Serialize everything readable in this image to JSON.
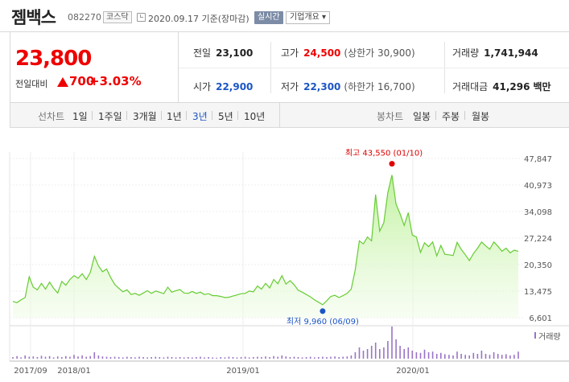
{
  "header": {
    "stock_name": "젬백스",
    "stock_code": "082270",
    "market": "코스닥",
    "date_text": "2020.09.17 기준(장마감)",
    "realtime_label": "실시간",
    "company_label": "기업개요 ▾"
  },
  "quote": {
    "price": "23,800",
    "change_label": "전일대비",
    "change_value": "700",
    "change_pct": "+3.03%",
    "stats": {
      "prev_close_label": "전일",
      "prev_close": "23,100",
      "high_label": "고가",
      "high": "24,500",
      "upper_limit": "(상한가 30,900)",
      "volume_label": "거래량",
      "volume": "1,741,944",
      "open_label": "시가",
      "open": "22,900",
      "low_label": "저가",
      "low": "22,300",
      "lower_limit": "(하한가 16,700)",
      "amount_label": "거래대금",
      "amount": "41,296",
      "amount_unit": "백만"
    }
  },
  "tabs": {
    "line_label": "선차트",
    "line_tabs": [
      "1일",
      "1주일",
      "3개월",
      "1년",
      "3년",
      "5년",
      "10년"
    ],
    "line_active": "3년",
    "candle_label": "봉차트",
    "candle_tabs": [
      "일봉",
      "주봉",
      "월봉"
    ]
  },
  "colors": {
    "up": "#e00000",
    "down": "#1c55c4",
    "line": "#66cc33",
    "volume": "#9a74c6"
  },
  "chart_data": {
    "type": "area",
    "y_ticks": [
      "47,847",
      "40,973",
      "34,098",
      "27,224",
      "20,350",
      "13,475",
      "6,601"
    ],
    "ylim": [
      6601,
      47847
    ],
    "x_ticks": [
      "2017/09",
      "2018/01",
      "2019/01",
      "2020/01"
    ],
    "max_annotation": "최고 43,550 (01/10)",
    "min_annotation": "최저 9,960 (06/09)",
    "volume_legend": "거래량",
    "series": [
      {
        "values": [
          10800,
          10500,
          11200,
          11800,
          17200,
          14500,
          13800,
          15500,
          14000,
          15800,
          14200,
          13000,
          16000,
          15000,
          16500,
          17500,
          16800,
          18000,
          16500,
          18300,
          22500,
          20000,
          18500,
          19200,
          17000,
          15200,
          14200,
          13300,
          13800,
          12600,
          12900,
          12400,
          13000,
          13600,
          12900,
          13500,
          13200,
          12800,
          14500,
          13200,
          13600,
          13900,
          13000,
          12900,
          13400,
          12900,
          13200,
          12600,
          12800,
          12300,
          12300,
          12100,
          11800,
          11900,
          12200,
          12500,
          12800,
          12900,
          13500,
          13300,
          14800,
          14000,
          15500,
          14300,
          16500,
          15400,
          17500,
          15300,
          16200,
          15100,
          13700,
          13200,
          12600,
          12000,
          11200,
          10600,
          9960,
          11000,
          12100,
          12400,
          11800,
          12300,
          12900,
          14000,
          19000,
          26500,
          25700,
          27500,
          26500,
          38500,
          29000,
          31200,
          39000,
          43550,
          36000,
          33500,
          30500,
          33800,
          28000,
          27500,
          23500,
          26000,
          25000,
          26200,
          22600,
          25300,
          23000,
          22900,
          22700,
          26100,
          24300,
          22900,
          21400,
          23200,
          24600,
          26200,
          25200,
          24300,
          26200,
          25100,
          23800,
          24600,
          23400,
          24100,
          23800
        ],
        "volumes": [
          0.05,
          0.08,
          0.04,
          0.1,
          0.06,
          0.07,
          0.05,
          0.09,
          0.06,
          0.08,
          0.04,
          0.07,
          0.05,
          0.08,
          0.06,
          0.12,
          0.07,
          0.1,
          0.06,
          0.08,
          0.2,
          0.1,
          0.07,
          0.06,
          0.05,
          0.06,
          0.05,
          0.04,
          0.06,
          0.05,
          0.04,
          0.06,
          0.05,
          0.04,
          0.05,
          0.06,
          0.05,
          0.04,
          0.06,
          0.05,
          0.04,
          0.05,
          0.04,
          0.05,
          0.04,
          0.05,
          0.06,
          0.04,
          0.05,
          0.04,
          0.03,
          0.05,
          0.04,
          0.06,
          0.05,
          0.04,
          0.05,
          0.06,
          0.04,
          0.05,
          0.06,
          0.05,
          0.07,
          0.05,
          0.08,
          0.06,
          0.1,
          0.07,
          0.05,
          0.06,
          0.05,
          0.04,
          0.05,
          0.06,
          0.04,
          0.05,
          0.06,
          0.05,
          0.06,
          0.07,
          0.05,
          0.06,
          0.07,
          0.1,
          0.2,
          0.35,
          0.25,
          0.3,
          0.4,
          0.5,
          0.3,
          0.35,
          0.55,
          1.0,
          0.6,
          0.4,
          0.3,
          0.35,
          0.25,
          0.2,
          0.18,
          0.28,
          0.2,
          0.22,
          0.15,
          0.18,
          0.14,
          0.12,
          0.1,
          0.22,
          0.15,
          0.12,
          0.1,
          0.18,
          0.15,
          0.25,
          0.15,
          0.12,
          0.2,
          0.15,
          0.12,
          0.14,
          0.1,
          0.12,
          0.22
        ]
      }
    ]
  }
}
